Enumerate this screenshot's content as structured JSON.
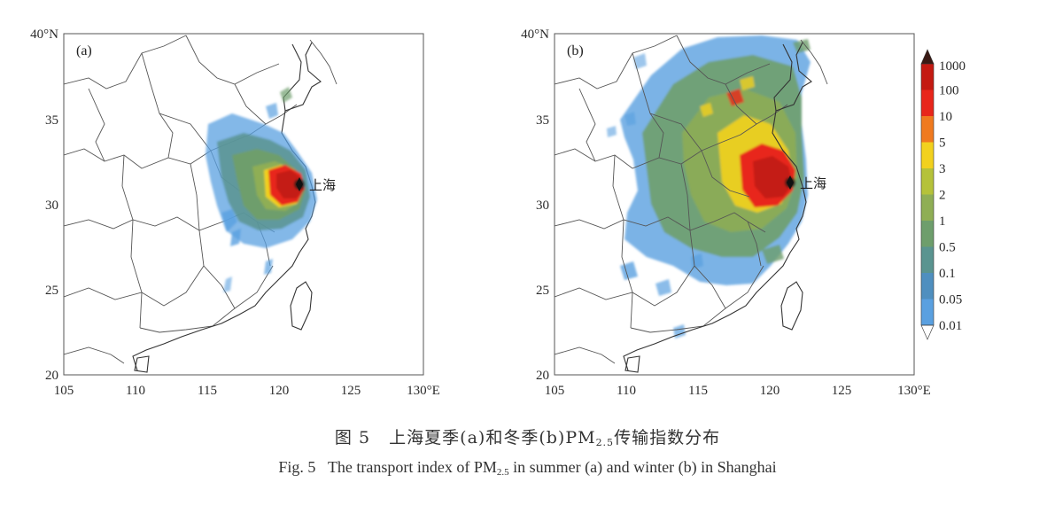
{
  "panels": [
    {
      "id": "a",
      "label": "(a)",
      "city_label": "上海",
      "lat_ticks": [
        "40°N",
        "35",
        "30",
        "25",
        "20"
      ],
      "lon_ticks": [
        "105",
        "110",
        "115",
        "120",
        "125",
        "130°E"
      ],
      "season": "summer"
    },
    {
      "id": "b",
      "label": "(b)",
      "city_label": "上海",
      "lat_ticks": [
        "40°N",
        "35",
        "30",
        "25",
        "20"
      ],
      "lon_ticks": [
        "105",
        "110",
        "115",
        "120",
        "125",
        "130°E"
      ],
      "season": "winter"
    }
  ],
  "map_extent": {
    "lon": [
      105,
      130
    ],
    "lat": [
      20,
      40
    ]
  },
  "colorbar": {
    "levels": [
      "1000",
      "100",
      "10",
      "5",
      "3",
      "2",
      "1",
      "0.5",
      "0.1",
      "0.05",
      "0.01"
    ],
    "colors": [
      "#3a1a14",
      "#c41a12",
      "#e8261b",
      "#f07a1f",
      "#f2d11e",
      "#b5c23a",
      "#8fae55",
      "#6e9e6c",
      "#5a9490",
      "#4f8fbf",
      "#5aa0e0",
      "#ffffff"
    ]
  },
  "caption": {
    "cn_prefix": "图 5",
    "cn_text_a": "上海夏季(a)和冬季(b)PM",
    "cn_sub": "2.5",
    "cn_text_b": "传输指数分布",
    "en_prefix": "Fig. 5",
    "en_text_a": "The transport index of PM",
    "en_sub": "2.5",
    "en_text_b": " in summer (a) and winter (b) in Shanghai"
  }
}
